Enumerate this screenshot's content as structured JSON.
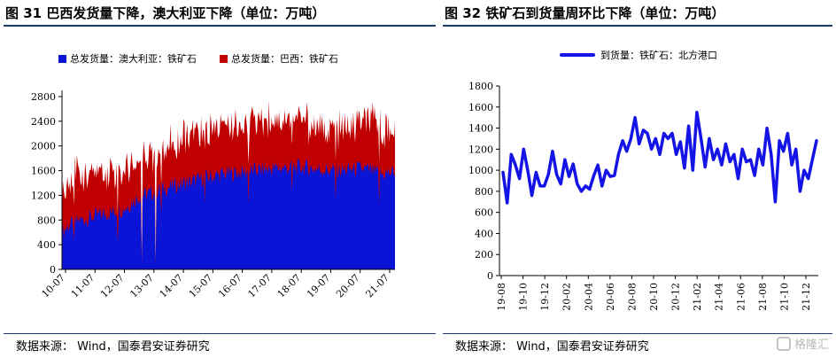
{
  "left": {
    "title": "图 31  巴西发货量下降，澳大利亚下降（单位：万吨）",
    "source": "数据来源：  Wind，国泰君安证券研究",
    "chart_data": {
      "type": "area",
      "stacked": true,
      "yticks": [
        "0",
        "400",
        "800",
        "1200",
        "1600",
        "2000",
        "2400",
        "2800"
      ],
      "ylim": [
        0,
        2900
      ],
      "xticks": [
        "10-07",
        "11-07",
        "12-07",
        "13-07",
        "14-07",
        "15-07",
        "16-07",
        "17-07",
        "18-07",
        "19-07",
        "20-07",
        "21-07"
      ],
      "series": [
        {
          "name": "总发货量：澳大利亚：铁矿石",
          "color": "#0a14d6",
          "values": [
            600,
            700,
            760,
            800,
            820,
            850,
            880,
            900,
            920,
            950,
            980,
            1050,
            1150,
            1200,
            1220,
            1250,
            1300,
            1320,
            1350,
            1380,
            1400,
            1420,
            1450,
            1480,
            1500,
            1520,
            1540,
            1550,
            1560,
            1570,
            1580,
            1600,
            1610,
            1620,
            1630,
            1640,
            1640,
            1650,
            1650,
            1660,
            1640,
            1630,
            1620,
            1610,
            1600,
            1600,
            1610,
            1620,
            1630,
            1620,
            1600,
            1560,
            1540,
            1560,
            1580
          ]
        },
        {
          "name": "总发货量：巴西：铁矿石",
          "color": "#c00000",
          "values": [
            700,
            740,
            750,
            720,
            720,
            700,
            690,
            700,
            700,
            680,
            690,
            660,
            620,
            640,
            650,
            660,
            680,
            690,
            700,
            700,
            700,
            710,
            720,
            720,
            720,
            740,
            760,
            770,
            770,
            780,
            790,
            800,
            820,
            820,
            820,
            810,
            800,
            790,
            780,
            760,
            720,
            700,
            680,
            660,
            640,
            630,
            640,
            660,
            700,
            720,
            740,
            740,
            720,
            700,
            720
          ]
        }
      ]
    }
  },
  "right": {
    "title": "图 32  铁矿石到货量周环比下降（单位：万吨）",
    "source": "数据来源：  Wind，国泰君安证券研究",
    "chart_data": {
      "type": "line",
      "yticks": [
        "0",
        "200",
        "400",
        "600",
        "800",
        "1000",
        "1200",
        "1400",
        "1600",
        "1800"
      ],
      "ylim": [
        0,
        1800
      ],
      "xticks": [
        "19-08",
        "19-10",
        "19-12",
        "20-02",
        "20-04",
        "20-06",
        "20-08",
        "20-10",
        "20-12",
        "21-02",
        "21-04",
        "21-06",
        "21-08",
        "21-10",
        "21-12"
      ],
      "series": [
        {
          "name": "到货量：铁矿石：北方港口",
          "color": "#1414e6",
          "values": [
            980,
            690,
            1150,
            1050,
            920,
            1200,
            1000,
            760,
            980,
            850,
            850,
            960,
            1180,
            960,
            870,
            1100,
            940,
            1060,
            870,
            800,
            850,
            820,
            950,
            1050,
            850,
            1000,
            940,
            950,
            1150,
            1280,
            1180,
            1300,
            1500,
            1250,
            1380,
            1350,
            1200,
            1300,
            1150,
            1350,
            1300,
            1350,
            1150,
            1270,
            1020,
            1420,
            1000,
            1550,
            1300,
            1030,
            1300,
            1100,
            1200,
            1050,
            1250,
            1080,
            1150,
            920,
            1200,
            1080,
            1100,
            950,
            1200,
            1050,
            1400,
            1150,
            700,
            1280,
            1180,
            1350,
            1050,
            1200,
            800,
            1000,
            920,
            1100,
            1280
          ]
        }
      ]
    }
  },
  "watermark": "格隆汇"
}
